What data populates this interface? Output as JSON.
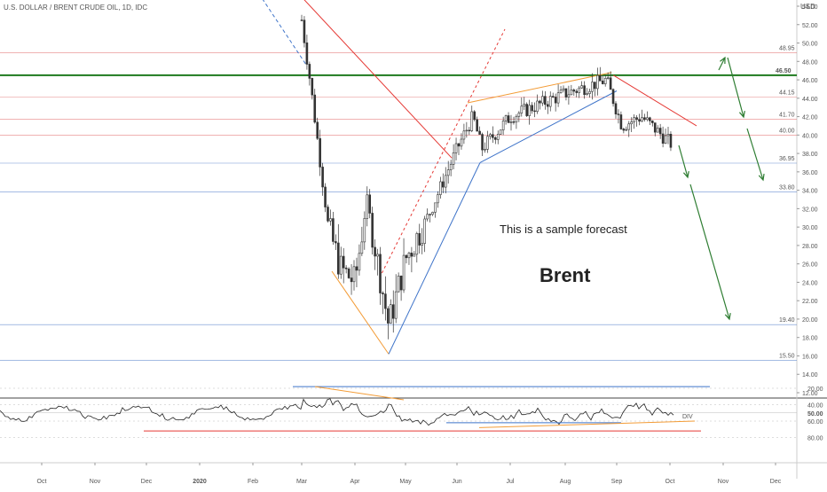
{
  "chart_data": {
    "type": "candlestick",
    "title": "U.S. DOLLAR / BRENT CRUDE OIL, 1D, IDC",
    "currency": "USD",
    "annotations": {
      "forecast_text": "This is a sample forecast",
      "instrument_text": "Brent",
      "divergence_label": "DIV"
    },
    "y_range": [
      11,
      55
    ],
    "y_ticks": [
      "54.00",
      "52.00",
      "50.00",
      "48.00",
      "46.00",
      "44.00",
      "42.00",
      "40.00",
      "38.00",
      "36.00",
      "34.00",
      "32.00",
      "30.00",
      "28.00",
      "26.00",
      "24.00",
      "22.00",
      "20.00",
      "18.00",
      "16.00",
      "14.00",
      "12.00"
    ],
    "x_ticks": [
      "Oct",
      "Nov",
      "Dec",
      "2020",
      "Feb",
      "Mar",
      "Apr",
      "May",
      "Jun",
      "Jul",
      "Aug",
      "Sep",
      "Oct",
      "Nov",
      "Dec"
    ],
    "price_path_monthly": [
      [
        "2020-03-01",
        52.5
      ],
      [
        "2020-03-06",
        45.5
      ],
      [
        "2020-03-16",
        30.0
      ],
      [
        "2020-03-23",
        25.5
      ],
      [
        "2020-04-01",
        24.0
      ],
      [
        "2020-04-08",
        33.0
      ],
      [
        "2020-04-21",
        19.3
      ],
      [
        "2020-05-01",
        26.5
      ],
      [
        "2020-05-15",
        31.5
      ],
      [
        "2020-06-01",
        38.5
      ],
      [
        "2020-06-10",
        42.0
      ],
      [
        "2020-06-15",
        38.5
      ],
      [
        "2020-07-01",
        42.0
      ],
      [
        "2020-08-01",
        44.5
      ],
      [
        "2020-08-25",
        46.0
      ],
      [
        "2020-09-04",
        41.0
      ],
      [
        "2020-09-15",
        42.0
      ],
      [
        "2020-10-02",
        39.0
      ]
    ],
    "levels": [
      {
        "value": 48.95,
        "label": "48.95",
        "color": "#e06666"
      },
      {
        "value": 46.5,
        "label": "46.50",
        "color": "#1e7a1e"
      },
      {
        "value": 44.15,
        "label": "44.15",
        "color": "#e06666"
      },
      {
        "value": 41.7,
        "label": "41.70",
        "color": "#e06666"
      },
      {
        "value": 40.0,
        "label": "40.00",
        "color": "#e06666"
      },
      {
        "value": 36.95,
        "label": "36.95",
        "color": "#4a78c8"
      },
      {
        "value": 33.8,
        "label": "33.80",
        "color": "#4a78c8"
      },
      {
        "value": 19.4,
        "label": "19.40",
        "color": "#4a78c8"
      },
      {
        "value": 15.5,
        "label": "15.50",
        "color": "#4a78c8"
      }
    ],
    "oscillator": {
      "ticks": [
        "80.00",
        "60.00",
        "50.00",
        "40.00",
        "20.00"
      ],
      "upper_line": 72,
      "lower_line": 18
    },
    "colors": {
      "up": "#333333",
      "down": "#333333",
      "resistance": "#e53935",
      "support_orange": "#f39c37",
      "trend_blue": "#3f74c9",
      "forecast_green": "#2e7d32"
    }
  }
}
